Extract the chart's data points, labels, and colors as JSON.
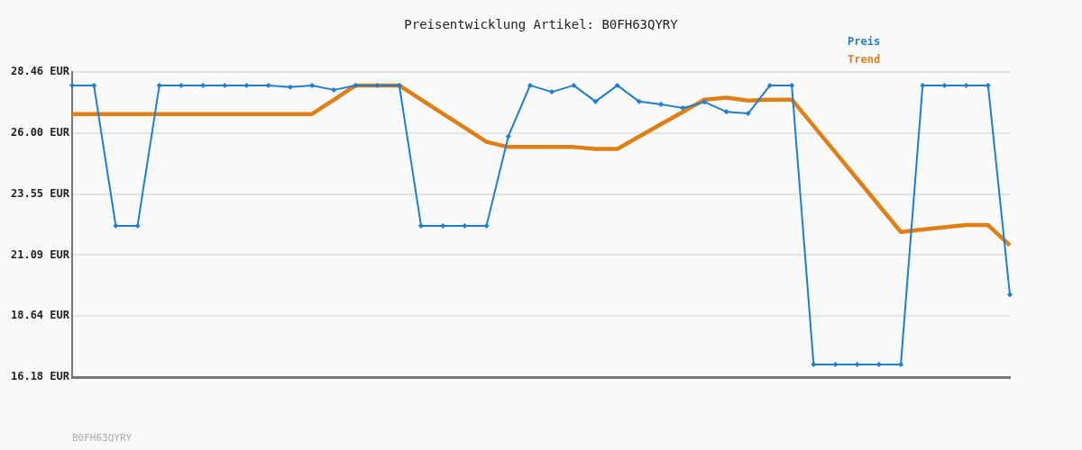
{
  "chart_data": {
    "type": "line",
    "title": "Preisentwicklung Artikel: B0FH63QYRY",
    "categories": [
      null,
      null,
      null,
      null,
      null,
      null,
      null,
      null,
      null,
      null,
      null,
      null,
      null,
      null,
      null,
      null,
      null,
      null,
      null,
      null,
      null,
      null,
      null,
      null,
      null,
      null,
      null,
      null,
      null,
      null,
      null,
      null,
      null,
      null,
      null,
      null,
      null,
      null,
      null,
      null,
      null,
      null,
      null,
      null
    ],
    "series": [
      {
        "name": "Preis",
        "color": "#1f7fcf",
        "marker": "diamond",
        "values": [
          27.92,
          27.92,
          22.27,
          22.27,
          27.92,
          27.92,
          27.92,
          27.92,
          27.92,
          27.92,
          27.85,
          27.92,
          27.74,
          27.92,
          27.92,
          27.92,
          22.27,
          22.27,
          22.27,
          22.27,
          25.87,
          27.92,
          27.66,
          27.92,
          27.27,
          27.92,
          27.27,
          27.16,
          27.01,
          27.25,
          26.86,
          26.79,
          27.92,
          27.92,
          16.69,
          16.69,
          16.69,
          16.69,
          16.69,
          27.92,
          27.92,
          27.92,
          27.92,
          19.5
        ]
      },
      {
        "name": "Trend",
        "color": "#e07f16",
        "marker": "none",
        "values": [
          26.77,
          26.77,
          26.77,
          26.77,
          26.77,
          26.77,
          26.77,
          26.77,
          26.77,
          26.77,
          26.77,
          26.77,
          27.34,
          27.92,
          27.92,
          27.92,
          27.35,
          26.78,
          26.22,
          25.65,
          25.44,
          25.44,
          25.44,
          25.44,
          25.36,
          25.36,
          25.86,
          26.36,
          26.85,
          27.35,
          27.43,
          27.31,
          27.35,
          27.35,
          26.29,
          25.22,
          24.16,
          23.09,
          22.02,
          22.12,
          22.21,
          22.3,
          22.3,
          21.48
        ]
      }
    ],
    "ylim": [
      16.18,
      28.46
    ],
    "yticks": [
      {
        "value": 16.18,
        "label": "16.18 EUR"
      },
      {
        "value": 18.64,
        "label": "18.64 EUR"
      },
      {
        "value": 21.09,
        "label": "21.09 EUR"
      },
      {
        "value": 23.55,
        "label": "23.55 EUR"
      },
      {
        "value": 26.0,
        "label": "26.00 EUR"
      },
      {
        "value": 28.46,
        "label": "28.46 EUR"
      }
    ],
    "grid": "y",
    "legend": "top right",
    "tick_labels": "y",
    "line_style": "solid",
    "annotations": [
      "B0FH63QYRY"
    ]
  }
}
